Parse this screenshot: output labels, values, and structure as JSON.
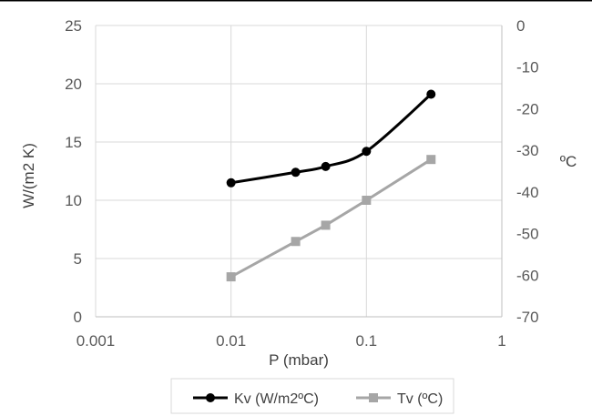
{
  "chart_data": {
    "type": "line",
    "xlabel": "P (mbar)",
    "ylabel": "W/(m2 K)",
    "y2label": "ºC",
    "xscale": "log",
    "xlim": [
      0.001,
      1
    ],
    "ylim": [
      0,
      25
    ],
    "y2lim": [
      -70,
      0
    ],
    "xticks": [
      "0.001",
      "0.01",
      "0.1",
      "1"
    ],
    "yticks": [
      "0",
      "5",
      "10",
      "15",
      "20",
      "25"
    ],
    "y2ticks": [
      "-70",
      "-60",
      "-50",
      "-40",
      "-30",
      "-20",
      "-10",
      "0"
    ],
    "grid": true,
    "legend_position": "bottom",
    "series": [
      {
        "name": "Kv (W/m2ºC)",
        "axis": "left",
        "marker": "circle",
        "color": "#000000",
        "smooth": true,
        "x": [
          0.01,
          0.03,
          0.05,
          0.1,
          0.3
        ],
        "y": [
          11.5,
          12.4,
          12.9,
          14.2,
          19.1
        ]
      },
      {
        "name": "Tv (ºC)",
        "axis": "right",
        "marker": "square",
        "color": "#a6a6a6",
        "smooth": false,
        "x": [
          0.01,
          0.03,
          0.05,
          0.1,
          0.3
        ],
        "y": [
          -60.4,
          -51.9,
          -48,
          -42,
          -32.2
        ]
      }
    ]
  }
}
